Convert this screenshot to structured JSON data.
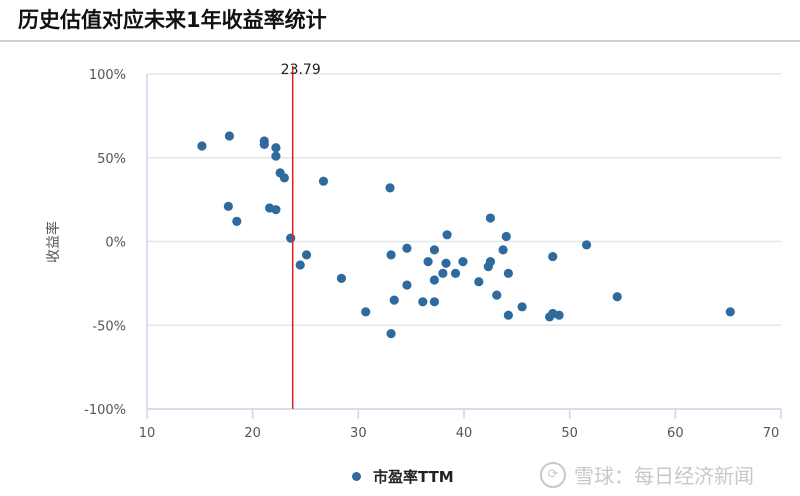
{
  "header": {
    "title": "历史估值对应未来1年收益率统计"
  },
  "colors": {
    "point": "#2e6a9e",
    "refline": "#e02020",
    "grid": "#e6e6e6",
    "axis": "#ccd6eb",
    "tick_text": "#555555"
  },
  "chart_data": {
    "type": "scatter",
    "title": "历史估值对应未来1年收益率统计",
    "xlabel": "",
    "ylabel": "收益率",
    "xlim": [
      10,
      70
    ],
    "ylim": [
      -100,
      100
    ],
    "x_ticks": [
      "10",
      "20",
      "30",
      "40",
      "50",
      "60",
      "70"
    ],
    "y_ticks": [
      "100%",
      "50%",
      "0%",
      "-50%",
      "-100%"
    ],
    "grid": true,
    "legend_position": "bottom",
    "reference_line": {
      "x": 23.79,
      "label": "23.79",
      "color": "#e02020"
    },
    "series": [
      {
        "name": "市盈率TTM",
        "points": [
          [
            15.2,
            57
          ],
          [
            17.8,
            63
          ],
          [
            21.1,
            60
          ],
          [
            21.1,
            58
          ],
          [
            22.2,
            56
          ],
          [
            22.2,
            51
          ],
          [
            22.6,
            41
          ],
          [
            23.0,
            38
          ],
          [
            26.7,
            36
          ],
          [
            33.0,
            32
          ],
          [
            17.7,
            21
          ],
          [
            21.6,
            20
          ],
          [
            22.2,
            19
          ],
          [
            18.5,
            12
          ],
          [
            23.6,
            2
          ],
          [
            25.1,
            -8
          ],
          [
            24.5,
            -14
          ],
          [
            28.4,
            -22
          ],
          [
            33.1,
            -8
          ],
          [
            34.6,
            -4
          ],
          [
            38.4,
            4
          ],
          [
            37.2,
            -5
          ],
          [
            36.6,
            -12
          ],
          [
            38.3,
            -13
          ],
          [
            38.0,
            -19
          ],
          [
            39.2,
            -19
          ],
          [
            37.2,
            -23
          ],
          [
            34.6,
            -26
          ],
          [
            33.4,
            -35
          ],
          [
            36.1,
            -36
          ],
          [
            37.2,
            -36
          ],
          [
            30.7,
            -42
          ],
          [
            33.1,
            -55
          ],
          [
            42.5,
            14
          ],
          [
            44.0,
            3
          ],
          [
            43.7,
            -5
          ],
          [
            39.9,
            -12
          ],
          [
            42.5,
            -12
          ],
          [
            42.3,
            -15
          ],
          [
            44.2,
            -19
          ],
          [
            41.4,
            -24
          ],
          [
            43.1,
            -32
          ],
          [
            45.5,
            -39
          ],
          [
            44.2,
            -44
          ],
          [
            48.1,
            -45
          ],
          [
            48.4,
            -43
          ],
          [
            49.0,
            -44
          ],
          [
            48.4,
            -9
          ],
          [
            51.6,
            -2
          ],
          [
            54.5,
            -33
          ],
          [
            65.2,
            -42
          ]
        ]
      }
    ]
  },
  "legend": {
    "label": "市盈率TTM"
  },
  "watermark": {
    "text": "雪球：每日经济新闻"
  }
}
